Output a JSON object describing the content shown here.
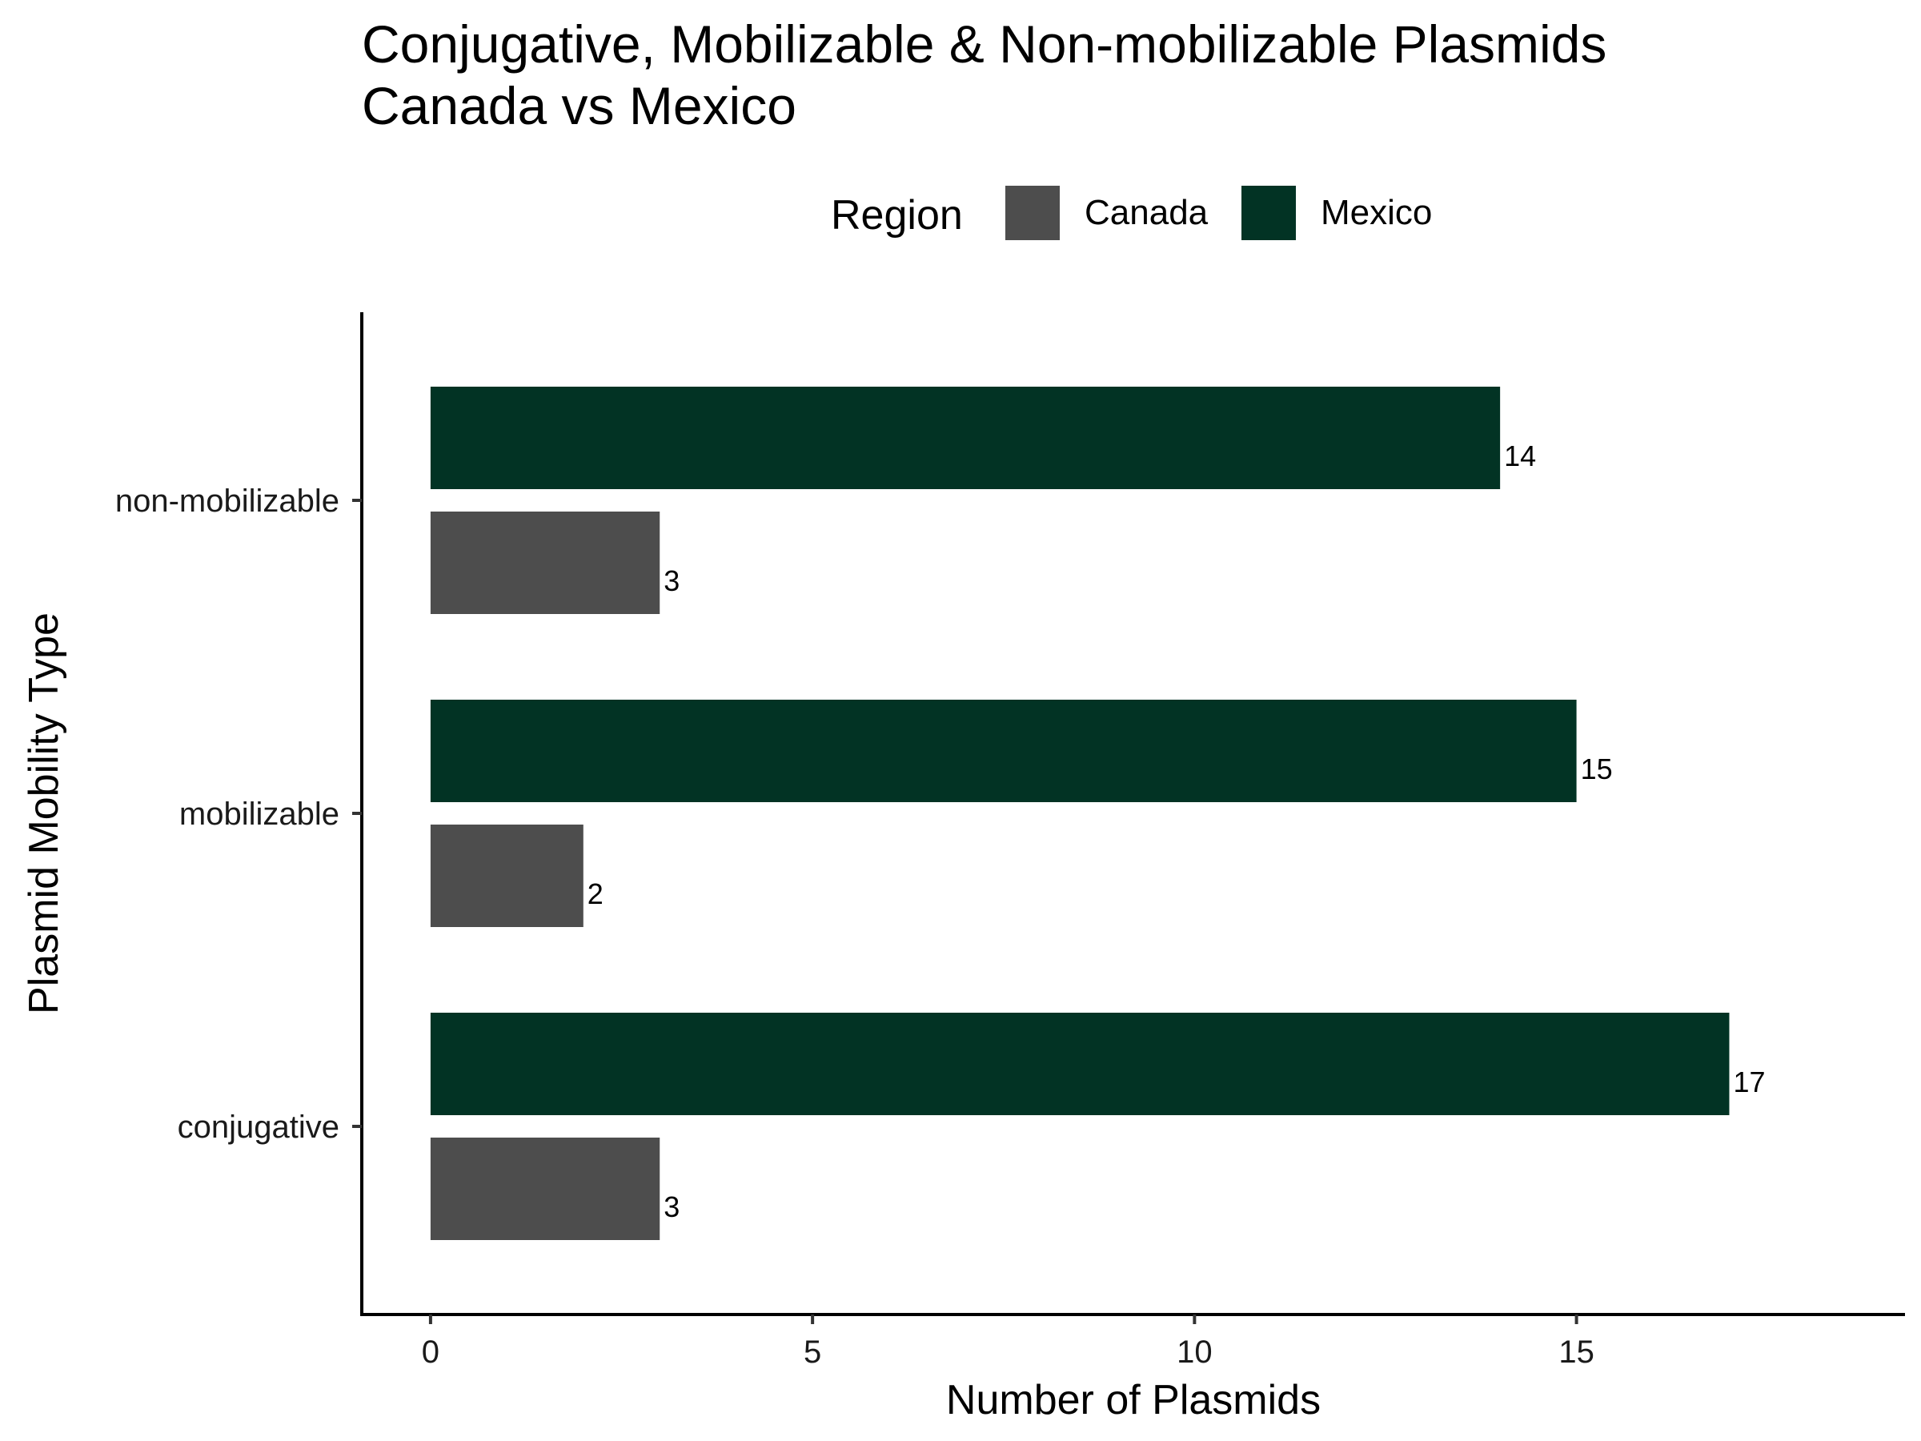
{
  "chart_data": {
    "type": "bar",
    "orientation": "horizontal",
    "title": "Conjugative, Mobilizable & Non-mobilizable Plasmids",
    "subtitle": "Canada vs Mexico",
    "xlabel": "Number of Plasmids",
    "ylabel": "Plasmid Mobility Type",
    "categories": [
      "non-mobilizable",
      "mobilizable",
      "conjugative"
    ],
    "series": [
      {
        "name": "Mexico",
        "color": "#023324",
        "values": [
          14,
          15,
          17
        ]
      },
      {
        "name": "Canada",
        "color": "#4d4d4d",
        "values": [
          3,
          2,
          3
        ]
      }
    ],
    "xlim": [
      -0.9,
      19.3
    ],
    "xticks": [
      0,
      5,
      10,
      15
    ],
    "legend": {
      "title": "Region",
      "position": "top",
      "order": [
        "Canada",
        "Mexico"
      ]
    },
    "grid": false,
    "data_labels": true
  }
}
